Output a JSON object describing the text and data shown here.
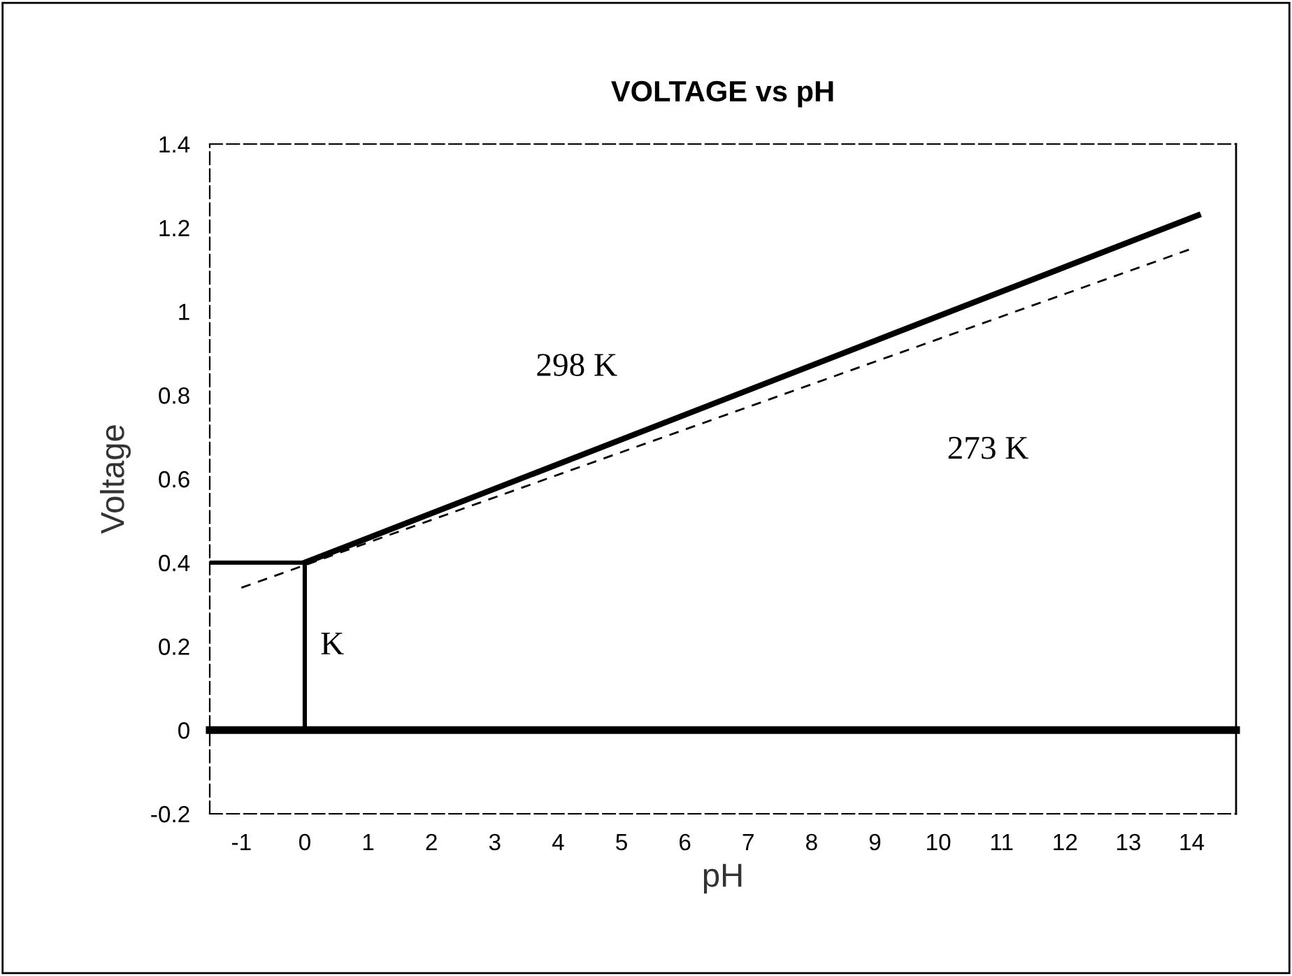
{
  "chart_data": {
    "type": "line",
    "title": "VOLTAGE vs pH",
    "xlabel": "pH",
    "ylabel": "Voltage",
    "xlim": [
      -1.5,
      14.7
    ],
    "xticks": [
      -1,
      0,
      1,
      2,
      3,
      4,
      5,
      6,
      7,
      8,
      9,
      10,
      11,
      12,
      13,
      14
    ],
    "ylim": [
      -0.2,
      1.4
    ],
    "yticks": [
      -0.2,
      0,
      0.2,
      0.4,
      0.6,
      0.8,
      1,
      1.2,
      1.4
    ],
    "series": [
      {
        "name": "298 K",
        "color": "#000000",
        "x": [
          0,
          14.1
        ],
        "values": [
          0.4,
          1.23
        ],
        "line_style": "solid"
      },
      {
        "name": "273 K",
        "color": "#000000",
        "x": [
          -1,
          14
        ],
        "values": [
          0.34,
          1.15
        ],
        "line_style": "dashed"
      },
      {
        "color": "#000000",
        "x": [
          -1.5,
          0,
          0
        ],
        "values": [
          0.4,
          0.4,
          0
        ],
        "line_style": "solid"
      }
    ],
    "ref_lines": [
      {
        "axis": "y",
        "value": 0,
        "color": "#000000"
      }
    ],
    "annotations": [
      {
        "text": "K",
        "x": 0,
        "y": 0.2
      }
    ],
    "grid": false,
    "legend": false,
    "marker": "none"
  }
}
